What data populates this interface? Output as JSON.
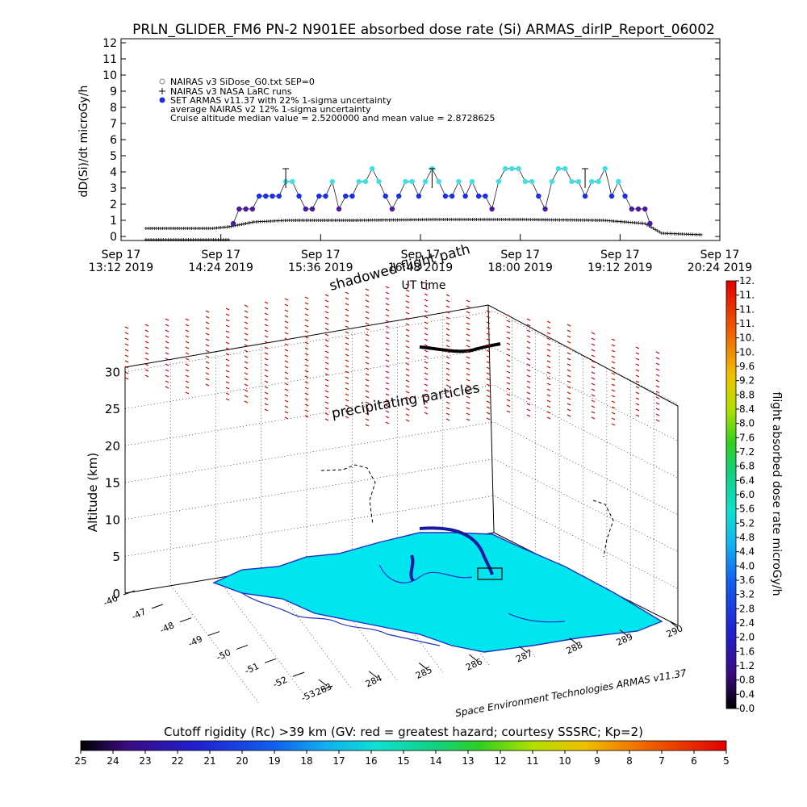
{
  "title": "PRLN_GLIDER_FM6 PN-2 N901EE absorbed dose rate (Si) ARMAS_dirIP_Report_06002",
  "top_chart": {
    "type": "scatter",
    "ylabel": "dD(Si)/dt microGy/h",
    "xlabel": "UT time",
    "ylim": [
      0,
      12
    ],
    "y_ticks": [
      "0",
      "1",
      "2",
      "3",
      "4",
      "5",
      "6",
      "7",
      "8",
      "9",
      "10",
      "11",
      "12"
    ],
    "x_ticks": [
      {
        "date": "Sep 17",
        "time": "13:12 2019"
      },
      {
        "date": "Sep 17",
        "time": "14:24 2019"
      },
      {
        "date": "Sep 17",
        "time": "15:36 2019"
      },
      {
        "date": "Sep 17",
        "time": "16:48 2019"
      },
      {
        "date": "Sep 17",
        "time": "18:00 2019"
      },
      {
        "date": "Sep 17",
        "time": "19:12 2019"
      },
      {
        "date": "Sep 17",
        "time": "20:24 2019"
      }
    ],
    "legend": [
      {
        "label": "NAIRAS v3 SiDose_G0.txt SEP=0",
        "marker": "diamond",
        "color": "#888888"
      },
      {
        "label": "NAIRAS v3 NASA LaRC runs",
        "marker": "plus",
        "color": "#000000"
      },
      {
        "label": "SET ARMAS v11.37 with 22% 1-sigma uncertainty",
        "marker": "dot",
        "color": "#1a2ee6"
      }
    ],
    "legend_notes": [
      "average NAIRAS v2 12% 1-sigma uncertainty",
      "Cruise altitude median value = 2.5200000 and mean value = 2.8728625"
    ],
    "x_range_hours": [
      13.2,
      20.4
    ],
    "armas_series": [
      {
        "t": 14.55,
        "v": 0.8
      },
      {
        "t": 14.62,
        "v": 1.7
      },
      {
        "t": 14.7,
        "v": 1.7
      },
      {
        "t": 14.78,
        "v": 1.7
      },
      {
        "t": 14.86,
        "v": 2.5
      },
      {
        "t": 14.94,
        "v": 2.5
      },
      {
        "t": 15.02,
        "v": 2.5
      },
      {
        "t": 15.1,
        "v": 2.5
      },
      {
        "t": 15.18,
        "v": 3.4
      },
      {
        "t": 15.26,
        "v": 3.4
      },
      {
        "t": 15.34,
        "v": 2.5
      },
      {
        "t": 15.42,
        "v": 1.7
      },
      {
        "t": 15.5,
        "v": 1.7
      },
      {
        "t": 15.58,
        "v": 2.5
      },
      {
        "t": 15.66,
        "v": 2.5
      },
      {
        "t": 15.74,
        "v": 3.4
      },
      {
        "t": 15.82,
        "v": 1.7
      },
      {
        "t": 15.9,
        "v": 2.5
      },
      {
        "t": 15.98,
        "v": 2.5
      },
      {
        "t": 16.06,
        "v": 3.4
      },
      {
        "t": 16.14,
        "v": 3.4
      },
      {
        "t": 16.22,
        "v": 4.2
      },
      {
        "t": 16.3,
        "v": 3.4
      },
      {
        "t": 16.38,
        "v": 2.5
      },
      {
        "t": 16.46,
        "v": 1.7
      },
      {
        "t": 16.54,
        "v": 2.5
      },
      {
        "t": 16.62,
        "v": 3.4
      },
      {
        "t": 16.7,
        "v": 3.4
      },
      {
        "t": 16.78,
        "v": 2.5
      },
      {
        "t": 16.86,
        "v": 3.4
      },
      {
        "t": 16.94,
        "v": 4.2
      },
      {
        "t": 17.02,
        "v": 3.4
      },
      {
        "t": 17.1,
        "v": 2.5
      },
      {
        "t": 17.18,
        "v": 2.5
      },
      {
        "t": 17.26,
        "v": 3.4
      },
      {
        "t": 17.34,
        "v": 2.5
      },
      {
        "t": 17.42,
        "v": 3.4
      },
      {
        "t": 17.5,
        "v": 2.5
      },
      {
        "t": 17.58,
        "v": 2.5
      },
      {
        "t": 17.66,
        "v": 1.7
      },
      {
        "t": 17.74,
        "v": 3.4
      },
      {
        "t": 17.82,
        "v": 4.2
      },
      {
        "t": 17.9,
        "v": 4.2
      },
      {
        "t": 17.98,
        "v": 4.2
      },
      {
        "t": 18.06,
        "v": 3.4
      },
      {
        "t": 18.14,
        "v": 3.4
      },
      {
        "t": 18.22,
        "v": 2.5
      },
      {
        "t": 18.3,
        "v": 1.7
      },
      {
        "t": 18.38,
        "v": 3.4
      },
      {
        "t": 18.46,
        "v": 4.2
      },
      {
        "t": 18.54,
        "v": 4.2
      },
      {
        "t": 18.62,
        "v": 3.4
      },
      {
        "t": 18.7,
        "v": 3.4
      },
      {
        "t": 18.78,
        "v": 2.5
      },
      {
        "t": 18.86,
        "v": 3.4
      },
      {
        "t": 18.94,
        "v": 3.4
      },
      {
        "t": 19.02,
        "v": 4.2
      },
      {
        "t": 19.1,
        "v": 2.5
      },
      {
        "t": 19.18,
        "v": 3.4
      },
      {
        "t": 19.26,
        "v": 2.5
      },
      {
        "t": 19.34,
        "v": 1.7
      },
      {
        "t": 19.42,
        "v": 1.7
      },
      {
        "t": 19.5,
        "v": 1.7
      },
      {
        "t": 19.56,
        "v": 0.8
      }
    ],
    "nairas_series": [
      {
        "t": 13.5,
        "v": 0.5
      },
      {
        "t": 14.3,
        "v": 0.5
      },
      {
        "t": 14.5,
        "v": 0.6
      },
      {
        "t": 14.8,
        "v": 0.9
      },
      {
        "t": 15.2,
        "v": 1.0
      },
      {
        "t": 16.0,
        "v": 1.0
      },
      {
        "t": 17.0,
        "v": 1.05
      },
      {
        "t": 18.0,
        "v": 1.05
      },
      {
        "t": 19.0,
        "v": 1.0
      },
      {
        "t": 19.5,
        "v": 0.8
      },
      {
        "t": 19.7,
        "v": 0.2
      },
      {
        "t": 20.2,
        "v": 0.1
      }
    ],
    "baseline_series": [
      {
        "t": 13.5,
        "v": -0.2
      },
      {
        "t": 14.5,
        "v": -0.2
      }
    ]
  },
  "bottom_chart": {
    "type": "3d-trajectory",
    "ylabel": "Altitude (km)",
    "z_ticks": [
      "0",
      "5",
      "10",
      "15",
      "20",
      "25",
      "30"
    ],
    "lat_ticks": [
      "-46",
      "-47",
      "-48",
      "-49",
      "-50",
      "-51",
      "-52",
      "-53"
    ],
    "lon_ticks": [
      "283",
      "284",
      "285",
      "286",
      "287",
      "288",
      "289",
      "290"
    ],
    "annotations": [
      "shadowed flight path",
      "precipitating particles"
    ],
    "credit": "Space Environment Technologies ARMAS v11.37"
  },
  "right_colorbar": {
    "label": "flight absorbed dose rate microGy/h",
    "ticks": [
      "0.0",
      "0.4",
      "0.8",
      "1.2",
      "1.6",
      "2.0",
      "2.4",
      "2.8",
      "3.2",
      "3.6",
      "4.0",
      "4.4",
      "4.8",
      "5.2",
      "5.6",
      "6.0",
      "6.4",
      "6.8",
      "7.2",
      "7.6",
      "8.0",
      "8.4",
      "8.8",
      "9.2",
      "9.6",
      "10.",
      "10.",
      "11.",
      "11.",
      "11.",
      "12."
    ]
  },
  "bottom_colorbar": {
    "label": "Cutoff rigidity (Rc) >39 km (GV: red = greatest hazard; courtesy SSSRC; Kp=2)",
    "ticks": [
      "25",
      "24",
      "23",
      "22",
      "21",
      "20",
      "19",
      "18",
      "17",
      "16",
      "15",
      "14",
      "13",
      "12",
      "11",
      "10",
      "9",
      "8",
      "7",
      "6",
      "5"
    ]
  },
  "colors": {
    "armas_low": "#4a1aa0",
    "armas_mid": "#1a2ee6",
    "armas_high": "#40e0e6",
    "land": "#00e5ee",
    "coast": "#2030c0",
    "red_marks": "#cc0000"
  }
}
